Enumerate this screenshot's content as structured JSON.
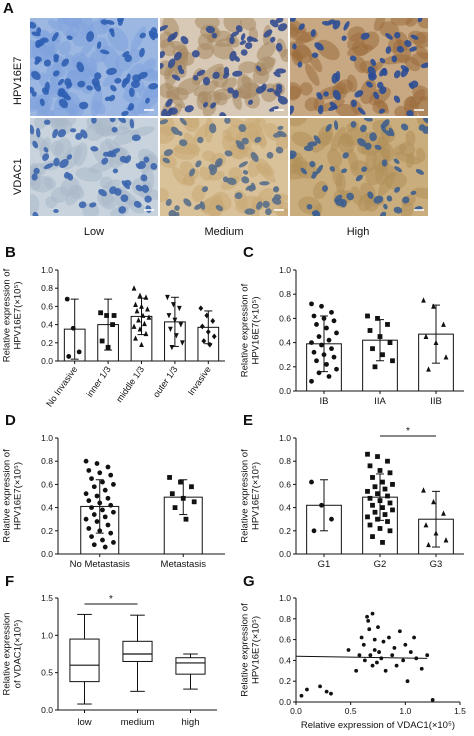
{
  "panels": {
    "A": {
      "letter": "A",
      "row_labels": [
        "HPV16E7",
        "VDAC1"
      ],
      "col_labels": [
        "Low",
        "Medium",
        "High"
      ]
    },
    "B": {
      "letter": "B"
    },
    "C": {
      "letter": "C"
    },
    "D": {
      "letter": "D"
    },
    "E": {
      "letter": "E"
    },
    "F": {
      "letter": "F"
    },
    "G": {
      "letter": "G"
    }
  },
  "colors": {
    "stain_low": "#2f5fb3",
    "stain_brown": "#9a6b3c",
    "stain_tan": "#c9aa74"
  },
  "chart_data": [
    {
      "id": "B",
      "type": "bar",
      "ylabel_lines": [
        "Relative expression of",
        "HPV16E7(×10⁵)"
      ],
      "categories": [
        "No Invasive",
        "inner 1/3",
        "middle 1/3",
        "outer 1/3",
        "Invasive"
      ],
      "values": [
        0.35,
        0.4,
        0.49,
        0.43,
        0.37
      ],
      "errors": [
        0.33,
        0.28,
        0.2,
        0.27,
        0.18
      ],
      "markers": [
        "circle",
        "square",
        "triangle",
        "triangle-down",
        "diamond"
      ],
      "points": [
        [
          0.68,
          0.36,
          0.1,
          0.05
        ],
        [
          0.53,
          0.5,
          0.4,
          0.22,
          0.15,
          0.5
        ],
        [
          0.8,
          0.72,
          0.7,
          0.62,
          0.6,
          0.57,
          0.55,
          0.5,
          0.48,
          0.45,
          0.41,
          0.38,
          0.35,
          0.3,
          0.25,
          0.18
        ],
        [
          0.7,
          0.62,
          0.58,
          0.5,
          0.45,
          0.4,
          0.35,
          0.28,
          0.2,
          0.15
        ],
        [
          0.58,
          0.5,
          0.44,
          0.38,
          0.32,
          0.27,
          0.22,
          0.18
        ]
      ],
      "yticks": [
        "0.0",
        "0.2",
        "0.4",
        "0.6",
        "0.8",
        "1.0"
      ],
      "ylim": [
        0,
        1.0
      ]
    },
    {
      "id": "C",
      "type": "bar",
      "ylabel_lines": [
        "Relative expression of",
        "HPV16E7(×10⁵)"
      ],
      "categories": [
        "IB",
        "IIA",
        "IIB"
      ],
      "values": [
        0.39,
        0.42,
        0.47
      ],
      "errors": [
        0.23,
        0.17,
        0.24
      ],
      "markers": [
        "circle",
        "square",
        "triangle"
      ],
      "points": [
        [
          0.72,
          0.7,
          0.65,
          0.62,
          0.6,
          0.58,
          0.55,
          0.52,
          0.48,
          0.45,
          0.42,
          0.4,
          0.38,
          0.35,
          0.32,
          0.3,
          0.28,
          0.25,
          0.22,
          0.18,
          0.15,
          0.12,
          0.08
        ],
        [
          0.62,
          0.6,
          0.55,
          0.5,
          0.45,
          0.4,
          0.35,
          0.3,
          0.25,
          0.2
        ],
        [
          0.75,
          0.7,
          0.55,
          0.45,
          0.4,
          0.28,
          0.18
        ]
      ],
      "yticks": [
        "0.0",
        "0.2",
        "0.4",
        "0.6",
        "0.8",
        "1.0"
      ],
      "ylim": [
        0,
        1.0
      ]
    },
    {
      "id": "D",
      "type": "bar",
      "ylabel_lines": [
        "Relative expression of",
        "HPV16E7(×10⁵)"
      ],
      "categories": [
        "No Metastasis",
        "Metastasis"
      ],
      "values": [
        0.41,
        0.49
      ],
      "errors": [
        0.23,
        0.15
      ],
      "markers": [
        "circle",
        "square"
      ],
      "points": [
        [
          0.8,
          0.78,
          0.75,
          0.72,
          0.7,
          0.68,
          0.65,
          0.62,
          0.6,
          0.58,
          0.55,
          0.52,
          0.5,
          0.48,
          0.46,
          0.44,
          0.42,
          0.4,
          0.38,
          0.36,
          0.34,
          0.32,
          0.3,
          0.28,
          0.25,
          0.22,
          0.2,
          0.18,
          0.15,
          0.12,
          0.1,
          0.08,
          0.06
        ],
        [
          0.66,
          0.62,
          0.58,
          0.52,
          0.48,
          0.45,
          0.4,
          0.3
        ]
      ],
      "yticks": [
        "0.0",
        "0.2",
        "0.4",
        "0.6",
        "0.8",
        "1.0"
      ],
      "ylim": [
        0,
        1.0
      ]
    },
    {
      "id": "E",
      "type": "bar",
      "ylabel_lines": [
        "Relative expression of",
        "HPV16E7(×10⁵)"
      ],
      "categories": [
        "G1",
        "G2",
        "G3"
      ],
      "values": [
        0.42,
        0.49,
        0.3
      ],
      "errors": [
        0.22,
        0.2,
        0.24
      ],
      "markers": [
        "circle",
        "square",
        "triangle"
      ],
      "points": [
        [
          0.62,
          0.42,
          0.3,
          0.2
        ],
        [
          0.86,
          0.84,
          0.8,
          0.76,
          0.72,
          0.7,
          0.66,
          0.62,
          0.6,
          0.58,
          0.56,
          0.54,
          0.52,
          0.5,
          0.48,
          0.46,
          0.44,
          0.42,
          0.4,
          0.38,
          0.36,
          0.34,
          0.32,
          0.3,
          0.28,
          0.25,
          0.22,
          0.2,
          0.15,
          0.1
        ],
        [
          0.55,
          0.45,
          0.35,
          0.25,
          0.18,
          0.12,
          0.08
        ]
      ],
      "sig": {
        "from": 1,
        "to": 2,
        "label": "*"
      },
      "yticks": [
        "0.0",
        "0.2",
        "0.4",
        "0.6",
        "0.8",
        "1.0"
      ],
      "ylim": [
        0,
        1.0
      ]
    },
    {
      "id": "F",
      "type": "boxplot",
      "ylabel_lines": [
        "Relative expression",
        "of VDAC1(×10⁵)"
      ],
      "categories": [
        "low",
        "medium",
        "high"
      ],
      "boxes": [
        {
          "min": 0.08,
          "q1": 0.38,
          "median": 0.6,
          "q3": 0.95,
          "max": 1.28
        },
        {
          "min": 0.25,
          "q1": 0.65,
          "median": 0.75,
          "q3": 0.92,
          "max": 1.27
        },
        {
          "min": 0.28,
          "q1": 0.48,
          "median": 0.63,
          "q3": 0.7,
          "max": 0.75
        }
      ],
      "sig": {
        "from": 0,
        "to": 1,
        "label": "*"
      },
      "yticks": [
        "0.0",
        "0.5",
        "1.0",
        "1.5"
      ],
      "ylim": [
        0,
        1.5
      ]
    },
    {
      "id": "G",
      "type": "scatter",
      "ylabel_lines": [
        "Relative expression of",
        "HPV16E7(×10⁵)"
      ],
      "xlabel": "Relative expression of VDAC1(×10⁵)",
      "x": [
        0.05,
        0.1,
        0.22,
        0.28,
        0.32,
        0.48,
        0.55,
        0.58,
        0.6,
        0.62,
        0.63,
        0.65,
        0.66,
        0.67,
        0.68,
        0.7,
        0.7,
        0.72,
        0.72,
        0.74,
        0.75,
        0.76,
        0.78,
        0.8,
        0.82,
        0.85,
        0.88,
        0.9,
        0.92,
        0.95,
        0.98,
        1.0,
        1.02,
        1.05,
        1.08,
        1.1,
        1.15,
        1.2,
        1.25
      ],
      "y": [
        0.06,
        0.12,
        0.15,
        0.1,
        0.08,
        0.5,
        0.3,
        0.45,
        0.62,
        0.55,
        0.4,
        0.82,
        0.78,
        0.7,
        0.45,
        0.85,
        0.35,
        0.6,
        0.5,
        0.38,
        0.72,
        0.48,
        0.42,
        0.58,
        0.3,
        0.62,
        0.45,
        0.52,
        0.35,
        0.68,
        0.4,
        0.55,
        0.2,
        0.48,
        0.62,
        0.42,
        0.32,
        0.45,
        0.02
      ],
      "fit": {
        "x0": 0.0,
        "y0": 0.44,
        "x1": 1.2,
        "y1": 0.42
      },
      "xticks": [
        "0.0",
        "0.5",
        "1.0",
        "1.5"
      ],
      "yticks": [
        "0.0",
        "0.2",
        "0.4",
        "0.6",
        "0.8",
        "1.0"
      ],
      "xlim": [
        0,
        1.5
      ],
      "ylim": [
        0,
        1.0
      ]
    }
  ]
}
